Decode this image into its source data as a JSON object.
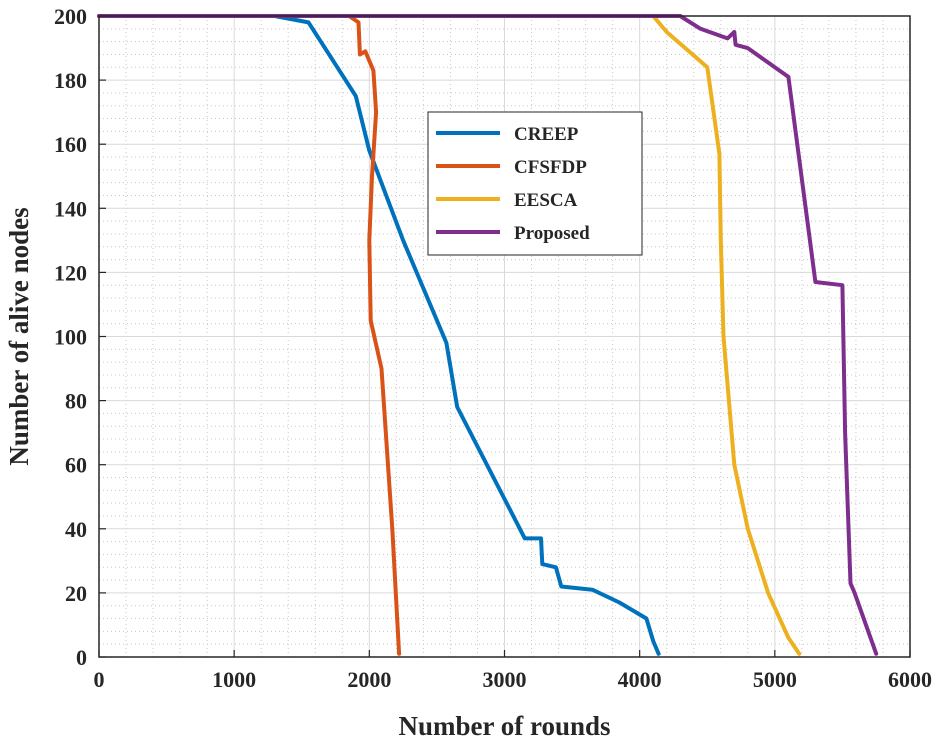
{
  "chart_data": {
    "type": "line",
    "title": "",
    "xlabel": "Number of rounds",
    "ylabel": "Number of alive nodes",
    "xlim": [
      0,
      6000
    ],
    "ylim": [
      0,
      200
    ],
    "xticks": [
      0,
      1000,
      2000,
      3000,
      4000,
      5000,
      6000
    ],
    "yticks": [
      0,
      20,
      40,
      60,
      80,
      100,
      120,
      140,
      160,
      180,
      200
    ],
    "grid": true,
    "minor_grid": true,
    "legend_position": "upper-center",
    "series": [
      {
        "name": "CREEP",
        "color": "#0072BD",
        "x": [
          0,
          1300,
          1550,
          1900,
          2000,
          2250,
          2570,
          2650,
          3150,
          3270,
          3280,
          3380,
          3420,
          3650,
          3850,
          4050,
          4100,
          4140
        ],
        "y": [
          200,
          200,
          198,
          175,
          158,
          130,
          98,
          78,
          37,
          37,
          29,
          28,
          22,
          21,
          17,
          12,
          5,
          1
        ]
      },
      {
        "name": "CFSFDP",
        "color": "#D95319",
        "x": [
          0,
          1850,
          1920,
          1930,
          1970,
          2030,
          2050,
          2020,
          2000,
          2010,
          2090,
          2170,
          2220
        ],
        "y": [
          200,
          200,
          198,
          188,
          189,
          183,
          170,
          150,
          130,
          105,
          90,
          40,
          1
        ]
      },
      {
        "name": "EESCA",
        "color": "#EDB120",
        "x": [
          0,
          4100,
          4200,
          4500,
          4590,
          4600,
          4620,
          4700,
          4800,
          4950,
          5100,
          5180
        ],
        "y": [
          200,
          200,
          195,
          184,
          157,
          130,
          100,
          60,
          40,
          20,
          6,
          1
        ]
      },
      {
        "name": "Proposed",
        "color": "#7E2F8E",
        "x": [
          0,
          4300,
          4450,
          4650,
          4700,
          4710,
          4800,
          5100,
          5300,
          5500,
          5520,
          5560,
          5590,
          5750
        ],
        "y": [
          200,
          200,
          196,
          193,
          195,
          191,
          190,
          181,
          117,
          116,
          70,
          23,
          20,
          1
        ]
      }
    ]
  }
}
